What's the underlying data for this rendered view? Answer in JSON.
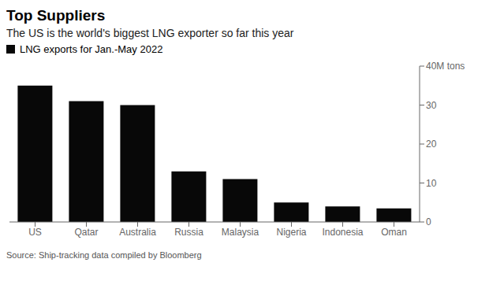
{
  "chart_data": {
    "type": "bar",
    "title": "Top Suppliers",
    "subtitle": "The US is the world's biggest LNG exporter so far this year",
    "source": "Source: Ship-tracking data compiled by Bloomberg",
    "categories": [
      "US",
      "Qatar",
      "Australia",
      "Russia",
      "Malaysia",
      "Nigeria",
      "Indonesia",
      "Oman"
    ],
    "series": [
      {
        "name": "LNG exports for Jan.-May 2022",
        "color": "#080808",
        "values": [
          35.0,
          31.0,
          30.0,
          13.0,
          11.0,
          5.0,
          4.0,
          3.5
        ]
      }
    ],
    "ylim": [
      0,
      40
    ],
    "yticks": [
      0,
      10,
      20,
      30,
      {
        "value": 40,
        "label": "40M tons"
      }
    ],
    "grid": false,
    "legend": "upper left"
  }
}
